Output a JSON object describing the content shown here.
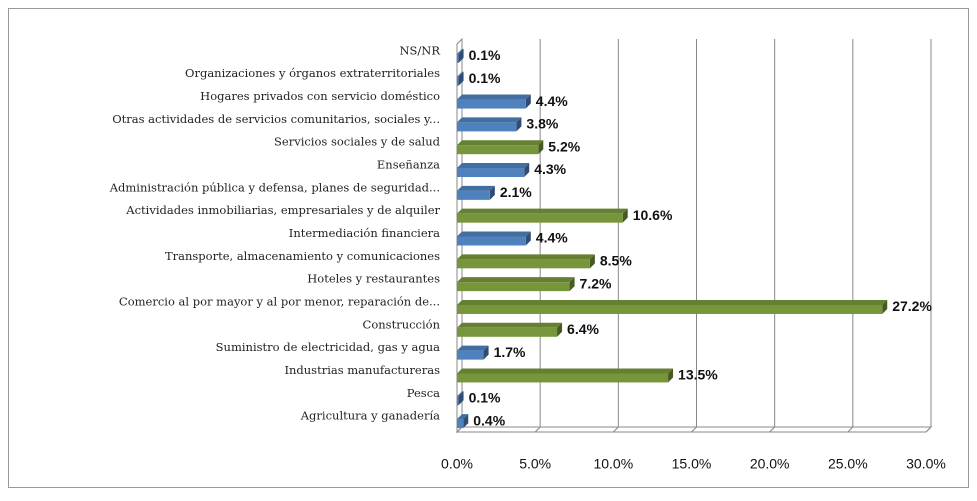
{
  "chart_data": {
    "type": "bar",
    "orientation": "horizontal",
    "categories": [
      "NS/NR",
      "Organizaciones y órganos extraterritoriales",
      "Hogares privados con servicio doméstico",
      "Otras actividades de servicios comunitarios, sociales y...",
      "Servicios sociales y de salud",
      "Enseñanza",
      "Administración pública y defensa, planes de seguridad...",
      "Actividades inmobiliarias, empresariales y de alquiler",
      "Intermediación financiera",
      "Transporte, almacenamiento y comunicaciones",
      "Hoteles y restaurantes",
      "Comercio al por mayor y al por menor, reparación de...",
      "Construcción",
      "Suministro de electricidad, gas y agua",
      "Industrias manufactureras",
      "Pesca",
      "Agricultura y ganadería"
    ],
    "values": [
      0.1,
      0.1,
      4.4,
      3.8,
      5.2,
      4.3,
      2.1,
      10.6,
      4.4,
      8.5,
      7.2,
      27.2,
      6.4,
      1.7,
      13.5,
      0.1,
      0.4
    ],
    "value_labels": [
      "0.1%",
      "0.1%",
      "4.4%",
      "3.8%",
      "5.2%",
      "4.3%",
      "2.1%",
      "10.6%",
      "4.4%",
      "8.5%",
      "7.2%",
      "27.2%",
      "6.4%",
      "1.7%",
      "13.5%",
      "0.1%",
      "0.4%"
    ],
    "colors": [
      "#4f81bd",
      "#4f81bd",
      "#4f81bd",
      "#4f81bd",
      "#77963b",
      "#4f81bd",
      "#4f81bd",
      "#77963b",
      "#4f81bd",
      "#77963b",
      "#77963b",
      "#77963b",
      "#77963b",
      "#4f81bd",
      "#77963b",
      "#4f81bd",
      "#4f81bd"
    ],
    "xlim": [
      0,
      30
    ],
    "xticks": [
      {
        "value": 0,
        "label": "0.0%"
      },
      {
        "value": 5,
        "label": "5.0%"
      },
      {
        "value": 10,
        "label": "10.0%"
      },
      {
        "value": 15,
        "label": "15.0%"
      },
      {
        "value": 20,
        "label": "20.0%"
      },
      {
        "value": 25,
        "label": "25.0%"
      },
      {
        "value": 30,
        "label": "30.0%"
      }
    ],
    "grid": true
  }
}
